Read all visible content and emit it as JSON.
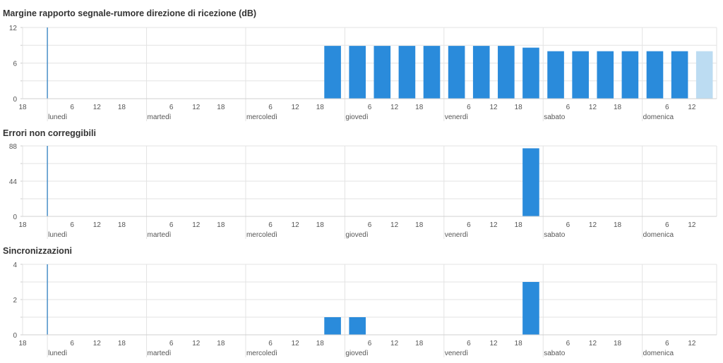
{
  "chart_data": [
    {
      "type": "bar",
      "title": "Margine rapporto segnale-rumore direzione di ricezione (dB)",
      "ylim": [
        0,
        12
      ],
      "yticks": [
        "0",
        "6",
        "12"
      ],
      "x_start_label": "18",
      "days": [
        "lunedì",
        "martedì",
        "mercoledì",
        "giovedì",
        "venerdì",
        "sabato",
        "domenica"
      ],
      "hour_ticks": [
        "6",
        "12",
        "18"
      ],
      "marker_day": "lunedì",
      "bars": [
        {
          "day": "mercoledì",
          "hour": 18,
          "value": 8.9
        },
        {
          "day": "giovedì",
          "hour": 0,
          "value": 8.9
        },
        {
          "day": "giovedì",
          "hour": 6,
          "value": 8.9
        },
        {
          "day": "giovedì",
          "hour": 12,
          "value": 8.9
        },
        {
          "day": "giovedì",
          "hour": 18,
          "value": 8.9
        },
        {
          "day": "venerdì",
          "hour": 0,
          "value": 8.9
        },
        {
          "day": "venerdì",
          "hour": 6,
          "value": 8.9
        },
        {
          "day": "venerdì",
          "hour": 12,
          "value": 8.9
        },
        {
          "day": "venerdì",
          "hour": 18,
          "value": 8.6
        },
        {
          "day": "sabato",
          "hour": 0,
          "value": 8.0
        },
        {
          "day": "sabato",
          "hour": 6,
          "value": 8.0
        },
        {
          "day": "sabato",
          "hour": 12,
          "value": 8.0
        },
        {
          "day": "sabato",
          "hour": 18,
          "value": 8.0
        },
        {
          "day": "domenica",
          "hour": 0,
          "value": 8.0
        },
        {
          "day": "domenica",
          "hour": 6,
          "value": 8.0
        },
        {
          "day": "domenica",
          "hour": 12,
          "value": 8.0,
          "partial": true
        }
      ]
    },
    {
      "type": "bar",
      "title": "Errori non correggibili",
      "ylim": [
        0,
        88
      ],
      "yticks": [
        "0",
        "44",
        "88"
      ],
      "x_start_label": "18",
      "days": [
        "lunedì",
        "martedì",
        "mercoledì",
        "giovedì",
        "venerdì",
        "sabato",
        "domenica"
      ],
      "hour_ticks": [
        "6",
        "12",
        "18"
      ],
      "marker_day": "lunedì",
      "bars": [
        {
          "day": "venerdì",
          "hour": 18,
          "value": 85
        }
      ]
    },
    {
      "type": "bar",
      "title": "Sincronizzazioni",
      "ylim": [
        0,
        4
      ],
      "yticks": [
        "0",
        "2",
        "4"
      ],
      "x_start_label": "18",
      "days": [
        "lunedì",
        "martedì",
        "mercoledì",
        "giovedì",
        "venerdì",
        "sabato",
        "domenica"
      ],
      "hour_ticks": [
        "6",
        "12",
        "18"
      ],
      "marker_day": "lunedì",
      "bars": [
        {
          "day": "mercoledì",
          "hour": 18,
          "value": 1
        },
        {
          "day": "giovedì",
          "hour": 0,
          "value": 1
        },
        {
          "day": "venerdì",
          "hour": 18,
          "value": 3
        }
      ]
    }
  ],
  "colors": {
    "bar": "#2a8bdb",
    "bar_partial": "#bcdcf2",
    "marker": "#4a90c9",
    "grid": "#e3e3e3"
  }
}
